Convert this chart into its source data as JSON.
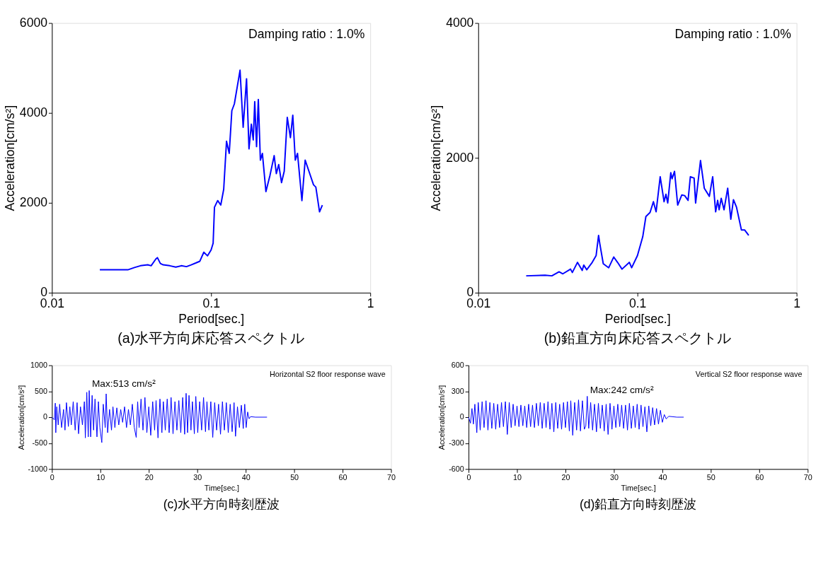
{
  "chart_data": [
    {
      "type": "line",
      "title": "(a)水平方向床応答スペクトル",
      "xlabel": "Period[sec.]",
      "ylabel": "Acceleration[cm/s²]",
      "log": "x",
      "grid": false,
      "legend": false,
      "xlim": [
        0.01,
        1
      ],
      "ylim": [
        0,
        6000
      ],
      "xticks": [
        0.01,
        0.1,
        1
      ],
      "yticks": [
        0,
        2000,
        4000,
        6000
      ],
      "annotations": [
        "Damping ratio : 1.0%"
      ],
      "x": [
        0.02,
        0.03,
        0.033,
        0.036,
        0.04,
        0.042,
        0.045,
        0.046,
        0.048,
        0.05,
        0.055,
        0.06,
        0.065,
        0.07,
        0.075,
        0.08,
        0.085,
        0.09,
        0.095,
        0.1,
        0.103,
        0.105,
        0.11,
        0.115,
        0.12,
        0.125,
        0.13,
        0.135,
        0.14,
        0.152,
        0.159,
        0.167,
        0.173,
        0.179,
        0.184,
        0.188,
        0.193,
        0.198,
        0.204,
        0.21,
        0.221,
        0.234,
        0.249,
        0.257,
        0.266,
        0.277,
        0.288,
        0.301,
        0.315,
        0.326,
        0.338,
        0.349,
        0.372,
        0.39,
        0.44,
        0.455,
        0.48,
        0.5
      ],
      "series": [
        {
          "color": "#0000ff",
          "values": [
            510,
            510,
            560,
            600,
            620,
            600,
            750,
            780,
            650,
            620,
            600,
            570,
            600,
            580,
            620,
            660,
            700,
            900,
            820,
            950,
            1100,
            1900,
            2050,
            1950,
            2300,
            3370,
            3100,
            4050,
            4200,
            4950,
            3680,
            4760,
            3200,
            3750,
            3400,
            4250,
            3250,
            4300,
            2950,
            3100,
            2250,
            2600,
            3050,
            2650,
            2850,
            2450,
            2700,
            3900,
            3450,
            3950,
            2950,
            3100,
            2050,
            2950,
            2400,
            2350,
            1800,
            1950
          ]
        }
      ]
    },
    {
      "type": "line",
      "title": "(b)鉛直方向床応答スペクトル",
      "xlabel": "Period[sec.]",
      "ylabel": "Acceleration[cm/s²]",
      "log": "x",
      "grid": false,
      "legend": false,
      "xlim": [
        0.01,
        1
      ],
      "ylim": [
        0,
        4000
      ],
      "xticks": [
        0.01,
        0.1,
        1
      ],
      "yticks": [
        0,
        2000,
        4000
      ],
      "annotations": [
        "Damping ratio : 1.0%"
      ],
      "x": [
        0.02,
        0.0263,
        0.029,
        0.0322,
        0.034,
        0.038,
        0.039,
        0.042,
        0.045,
        0.046,
        0.048,
        0.052,
        0.055,
        0.057,
        0.058,
        0.061,
        0.066,
        0.071,
        0.075,
        0.08,
        0.089,
        0.092,
        0.1,
        0.108,
        0.113,
        0.12,
        0.126,
        0.131,
        0.139,
        0.147,
        0.151,
        0.155,
        0.162,
        0.165,
        0.171,
        0.179,
        0.19,
        0.198,
        0.208,
        0.215,
        0.227,
        0.232,
        0.249,
        0.263,
        0.283,
        0.297,
        0.31,
        0.319,
        0.326,
        0.336,
        0.35,
        0.369,
        0.386,
        0.401,
        0.419,
        0.45,
        0.472,
        0.5
      ],
      "series": [
        {
          "color": "#0000ff",
          "values": [
            250,
            260,
            250,
            310,
            280,
            350,
            300,
            450,
            330,
            410,
            340,
            450,
            550,
            850,
            730,
            430,
            370,
            530,
            450,
            350,
            450,
            370,
            550,
            830,
            1130,
            1190,
            1350,
            1200,
            1720,
            1350,
            1460,
            1330,
            1780,
            1690,
            1800,
            1300,
            1450,
            1440,
            1370,
            1720,
            1700,
            1330,
            1960,
            1550,
            1430,
            1720,
            1200,
            1370,
            1230,
            1400,
            1230,
            1550,
            1090,
            1380,
            1270,
            930,
            930,
            850
          ]
        }
      ]
    },
    {
      "type": "line",
      "title": "(c)水平方向時刻歴波",
      "xlabel": "Time[sec.]",
      "ylabel": "Acceleration[cm/s²]",
      "grid": false,
      "legend": false,
      "xlim": [
        0,
        70
      ],
      "ylim": [
        -1000,
        1000
      ],
      "xticks": [
        0,
        10,
        20,
        30,
        40,
        50,
        60,
        70
      ],
      "yticks": [
        -1000,
        -500,
        0,
        500,
        1000
      ],
      "annotations": [
        "Horizontal S2 floor response wave",
        {
          "text": "Max:513 cm/s²",
          "x": 7.7,
          "y": 513
        }
      ],
      "x": [
        0,
        0.5,
        0.7,
        0.8,
        1.0,
        1.3,
        1.6,
        2.0,
        2.4,
        2.7,
        3.0,
        3.4,
        3.7,
        4.0,
        4.4,
        4.8,
        5.2,
        5.5,
        5.9,
        6.3,
        6.7,
        6.9,
        7.2,
        7.5,
        7.7,
        8.0,
        8.3,
        8.6,
        8.9,
        9.3,
        9.6,
        9.9,
        10.3,
        10.6,
        11.0,
        11.2,
        11.5,
        11.9,
        12.3,
        12.6,
        13.0,
        13.4,
        13.8,
        14.2,
        14.6,
        15.0,
        15.4,
        15.8,
        16.2,
        16.6,
        17.0,
        17.4,
        17.7,
        18.0,
        18.4,
        18.8,
        19.2,
        19.6,
        20.0,
        20.4,
        20.8,
        21.2,
        21.5,
        21.9,
        22.3,
        22.7,
        23.0,
        23.4,
        23.8,
        24.2,
        24.6,
        25.0,
        25.4,
        25.8,
        26.2,
        26.6,
        27.0,
        27.4,
        27.7,
        28.0,
        28.3,
        28.7,
        29.0,
        29.4,
        29.7,
        30.1,
        30.5,
        30.9,
        31.3,
        31.7,
        32.0,
        32.4,
        32.8,
        33.2,
        33.6,
        34.0,
        34.4,
        34.8,
        35.2,
        35.6,
        36.0,
        36.4,
        36.8,
        37.2,
        37.6,
        37.9,
        38.3,
        38.7,
        39.1,
        39.5,
        39.8,
        40.1,
        40.4,
        40.7,
        41,
        42,
        44.4
      ],
      "series": [
        {
          "color": "#0000ff",
          "values": [
            0,
            -50,
            270,
            -300,
            200,
            -150,
            250,
            -200,
            150,
            -250,
            280,
            -180,
            200,
            -150,
            300,
            -250,
            280,
            -320,
            200,
            -150,
            300,
            -400,
            480,
            -380,
            513,
            -380,
            420,
            -250,
            350,
            -380,
            300,
            -200,
            -490,
            250,
            -200,
            450,
            -300,
            150,
            -250,
            200,
            -200,
            180,
            -150,
            150,
            -100,
            200,
            -200,
            150,
            -150,
            250,
            -200,
            -390,
            300,
            -200,
            350,
            -250,
            380,
            -300,
            200,
            -350,
            300,
            -250,
            320,
            -400,
            350,
            -300,
            300,
            -250,
            350,
            -300,
            380,
            -320,
            300,
            -250,
            320,
            -300,
            380,
            -330,
            460,
            -300,
            420,
            -250,
            300,
            -320,
            400,
            -300,
            300,
            -250,
            380,
            -280,
            300,
            -250,
            300,
            -390,
            280,
            -250,
            250,
            -330,
            300,
            -250,
            280,
            -300,
            250,
            -280,
            280,
            -370,
            200,
            -200,
            230,
            -220,
            250,
            -200,
            100,
            -30,
            10,
            0,
            0
          ]
        }
      ]
    },
    {
      "type": "line",
      "title": "(d)鉛直方向時刻歴波",
      "xlabel": "Time[sec.]",
      "ylabel": "Acceleration[cm/s²]",
      "grid": false,
      "legend": false,
      "xlim": [
        0,
        70
      ],
      "ylim": [
        -600,
        600
      ],
      "xticks": [
        0,
        10,
        20,
        30,
        40,
        50,
        60,
        70
      ],
      "yticks": [
        -600,
        -300,
        0,
        300,
        600
      ],
      "annotations": [
        "Vertical S2 floor response wave",
        {
          "text": "Max:242 cm/s²",
          "x": 24.5,
          "y": 242
        }
      ],
      "x": [
        0,
        0.4,
        0.7,
        1.0,
        1.3,
        1.7,
        2.0,
        2.4,
        2.8,
        3.2,
        3.6,
        4.0,
        4.4,
        4.8,
        5.2,
        5.6,
        6.0,
        6.4,
        6.8,
        7.2,
        7.6,
        8.0,
        8.4,
        8.8,
        9.2,
        9.6,
        10.0,
        10.4,
        10.8,
        11.2,
        11.6,
        12.0,
        12.4,
        12.8,
        13.2,
        13.6,
        14.0,
        14.4,
        14.8,
        15.2,
        15.6,
        16.0,
        16.4,
        16.8,
        17.2,
        17.6,
        18.0,
        18.4,
        18.8,
        19.2,
        19.6,
        20.0,
        20.4,
        20.8,
        21.1,
        21.5,
        21.9,
        22.3,
        22.7,
        23.1,
        23.5,
        23.9,
        24.2,
        24.5,
        24.8,
        25.2,
        25.6,
        26.0,
        26.4,
        26.8,
        27.2,
        27.6,
        28.0,
        28.4,
        28.8,
        29.2,
        29.6,
        30.0,
        30.4,
        30.8,
        31.2,
        31.6,
        32.0,
        32.4,
        32.8,
        33.2,
        33.6,
        34.0,
        34.4,
        34.8,
        35.2,
        35.6,
        36.0,
        36.4,
        36.8,
        37.2,
        37.6,
        38.0,
        38.4,
        38.8,
        39.2,
        39.6,
        40.0,
        40.4,
        40.8,
        41.3,
        43,
        44.4
      ],
      "series": [
        {
          "color": "#0000ff",
          "values": [
            0,
            -70,
            100,
            -80,
            150,
            -180,
            170,
            -150,
            180,
            -120,
            190,
            -150,
            170,
            -130,
            160,
            -140,
            150,
            -120,
            170,
            -110,
            180,
            -200,
            170,
            -120,
            150,
            -100,
            130,
            -110,
            140,
            -100,
            130,
            -120,
            150,
            -110,
            140,
            -120,
            160,
            -100,
            170,
            -130,
            160,
            -120,
            180,
            -140,
            160,
            -170,
            170,
            -130,
            150,
            -140,
            170,
            -120,
            180,
            -160,
            190,
            -210,
            170,
            -150,
            200,
            -160,
            190,
            -140,
            -100,
            242,
            -130,
            170,
            -150,
            150,
            -170,
            160,
            -130,
            140,
            -160,
            150,
            -200,
            160,
            -140,
            130,
            -120,
            150,
            -110,
            140,
            -130,
            140,
            -150,
            160,
            -130,
            130,
            -120,
            150,
            -140,
            140,
            -110,
            120,
            -170,
            130,
            -100,
            110,
            -90,
            100,
            -80,
            80,
            -60,
            30,
            -20,
            10,
            0,
            0
          ]
        }
      ]
    }
  ]
}
